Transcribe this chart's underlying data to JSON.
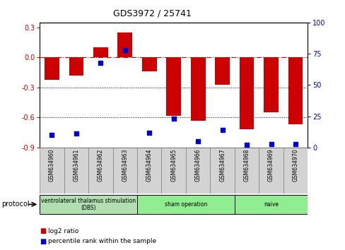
{
  "title": "GDS3972 / 25741",
  "samples": [
    "GSM634960",
    "GSM634961",
    "GSM634962",
    "GSM634963",
    "GSM634964",
    "GSM634965",
    "GSM634966",
    "GSM634967",
    "GSM634968",
    "GSM634969",
    "GSM634970"
  ],
  "log2_ratio": [
    -0.22,
    -0.18,
    0.1,
    0.25,
    -0.14,
    -0.58,
    -0.63,
    -0.27,
    -0.72,
    -0.55,
    -0.67
  ],
  "percentile_rank": [
    10,
    11,
    68,
    78,
    12,
    23,
    5,
    14,
    2,
    3,
    3
  ],
  "bar_color": "#CC0000",
  "dot_color": "#0000CC",
  "ylim_left": [
    -0.9,
    0.35
  ],
  "ylim_right": [
    0,
    100
  ],
  "yticks_left": [
    0.3,
    0.0,
    -0.3,
    -0.6,
    -0.9
  ],
  "yticks_right": [
    100,
    75,
    50,
    25,
    0
  ],
  "hline_y": 0.0,
  "dotted_hlines": [
    -0.3,
    -0.6
  ],
  "groups": [
    {
      "label": "ventrolateral thalamus stimulation\n(DBS)",
      "start": 0,
      "end": 3
    },
    {
      "label": "sham operation",
      "start": 4,
      "end": 7
    },
    {
      "label": "naive",
      "start": 8,
      "end": 10
    }
  ],
  "group_color_dbs": "#b0e0b0",
  "group_color_sham": "#90EE90",
  "group_color_naive": "#90EE90",
  "protocol_label": "protocol",
  "legend_items": [
    {
      "label": "log2 ratio",
      "color": "#CC0000"
    },
    {
      "label": "percentile rank within the sample",
      "color": "#0000CC"
    }
  ],
  "plot_bg_color": "#ffffff",
  "sample_box_color": "#d3d3d3"
}
